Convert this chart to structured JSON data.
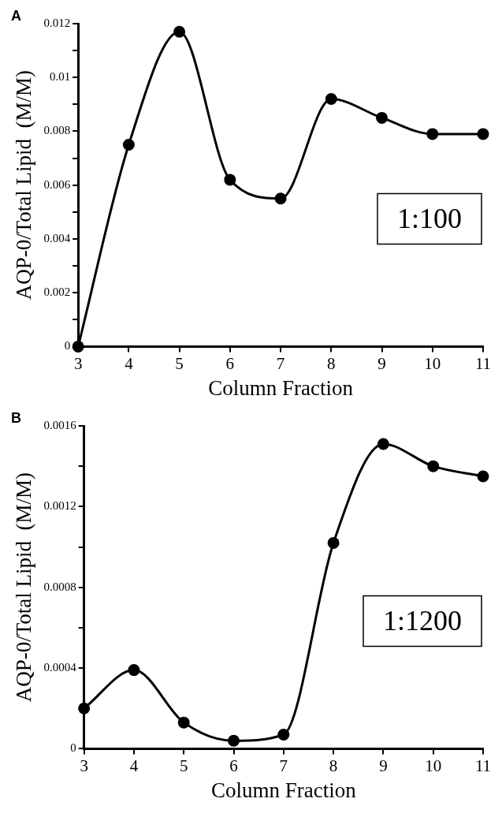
{
  "chart_data": [
    {
      "type": "line",
      "xlabel": "Column Fraction",
      "ylabel": "AQP-0/Total Lipid  (M/M)",
      "annotations": [
        "A",
        "1:100"
      ],
      "x": [
        3,
        4,
        5,
        6,
        7,
        8,
        9,
        10,
        11
      ],
      "series": [
        {
          "color": "#000000",
          "values": [
            0,
            0.0075,
            0.0117,
            0.0062,
            0.0055,
            0.0092,
            0.0085,
            0.0079,
            0.0079
          ]
        }
      ],
      "xlim": [
        3,
        11
      ],
      "xticks": [
        3,
        4,
        5,
        6,
        7,
        8,
        9,
        10,
        11
      ],
      "ylim": [
        0,
        0.012
      ],
      "yticks": [
        0,
        {
          "value": 0.001,
          "label": null
        },
        0.002,
        {
          "value": 0.003,
          "label": null
        },
        0.004,
        {
          "value": 0.005,
          "label": null
        },
        0.006,
        {
          "value": 0.007,
          "label": null
        },
        0.008,
        {
          "value": 0.009,
          "label": null
        },
        0.01,
        {
          "value": 0.011,
          "label": null
        },
        0.012
      ],
      "grid": false,
      "legend": false,
      "marker": "circle",
      "line_style": "solid"
    },
    {
      "type": "line",
      "xlabel": "Column Fraction",
      "ylabel": "AQP-0/Total Lipid  (M/M)",
      "annotations": [
        "B",
        "1:1200"
      ],
      "x": [
        3,
        4,
        5,
        6,
        7,
        8,
        9,
        10,
        11
      ],
      "series": [
        {
          "color": "#000000",
          "values": [
            0.0002,
            0.00039,
            0.00013,
            4e-05,
            7e-05,
            0.00102,
            0.00151,
            0.0014,
            0.00135
          ]
        }
      ],
      "xlim": [
        3,
        11
      ],
      "xticks": [
        3,
        4,
        5,
        6,
        7,
        8,
        9,
        10,
        11
      ],
      "ylim": [
        0,
        0.0016
      ],
      "yticks": [
        0,
        {
          "value": 0.0002,
          "label": null
        },
        0.0004,
        {
          "value": 0.0006,
          "label": null
        },
        0.0008,
        {
          "value": 0.001,
          "label": null
        },
        0.0012,
        {
          "value": 0.0014,
          "label": null
        },
        0.0016
      ],
      "grid": false,
      "legend": false,
      "marker": "circle",
      "line_style": "solid"
    }
  ]
}
